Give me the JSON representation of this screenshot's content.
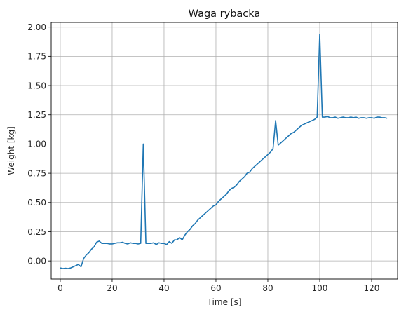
{
  "chart_data": {
    "type": "line",
    "title": "Waga rybacka",
    "xlabel": "Time [s]",
    "ylabel": "Weight [kg]",
    "xlim": [
      -3.5,
      130
    ],
    "ylim": [
      -0.155,
      2.04
    ],
    "xticks": [
      0,
      20,
      40,
      60,
      80,
      100,
      120
    ],
    "yticks": [
      0.0,
      0.25,
      0.5,
      0.75,
      1.0,
      1.25,
      1.5,
      1.75,
      2.0
    ],
    "ytick_labels": [
      "0.00",
      "0.25",
      "0.50",
      "0.75",
      "1.00",
      "1.25",
      "1.50",
      "1.75",
      "2.00"
    ],
    "grid": true,
    "series": [
      {
        "color": "#1f77b4",
        "x": [
          0,
          1,
          2,
          3,
          4,
          5,
          6,
          7,
          8,
          9,
          10,
          11,
          12,
          13,
          14,
          15,
          16,
          17,
          18,
          19,
          20,
          21,
          22,
          23,
          24,
          25,
          26,
          27,
          28,
          29,
          30,
          31,
          32,
          33,
          34,
          35,
          36,
          37,
          38,
          39,
          40,
          41,
          42,
          43,
          44,
          45,
          46,
          47,
          48,
          49,
          50,
          51,
          52,
          53,
          54,
          55,
          56,
          57,
          58,
          59,
          60,
          61,
          62,
          63,
          64,
          65,
          66,
          67,
          68,
          69,
          70,
          71,
          72,
          73,
          74,
          75,
          76,
          77,
          78,
          79,
          80,
          81,
          82,
          83,
          84,
          85,
          86,
          87,
          88,
          89,
          90,
          91,
          92,
          93,
          94,
          95,
          96,
          97,
          98,
          99,
          100,
          101,
          102,
          103,
          104,
          105,
          106,
          107,
          108,
          109,
          110,
          111,
          112,
          113,
          114,
          115,
          116,
          117,
          118,
          119,
          120,
          121,
          122,
          123,
          124,
          125,
          126
        ],
        "y": [
          -0.06,
          -0.065,
          -0.062,
          -0.065,
          -0.06,
          -0.05,
          -0.04,
          -0.03,
          -0.05,
          0.02,
          0.05,
          0.07,
          0.1,
          0.12,
          0.16,
          0.17,
          0.15,
          0.15,
          0.15,
          0.145,
          0.145,
          0.15,
          0.155,
          0.155,
          0.16,
          0.15,
          0.145,
          0.155,
          0.15,
          0.15,
          0.145,
          0.15,
          1.0,
          0.15,
          0.15,
          0.15,
          0.155,
          0.14,
          0.155,
          0.15,
          0.15,
          0.14,
          0.165,
          0.15,
          0.18,
          0.18,
          0.2,
          0.18,
          0.22,
          0.25,
          0.27,
          0.3,
          0.32,
          0.35,
          0.37,
          0.39,
          0.41,
          0.43,
          0.45,
          0.47,
          0.48,
          0.51,
          0.53,
          0.55,
          0.57,
          0.6,
          0.62,
          0.63,
          0.65,
          0.68,
          0.7,
          0.72,
          0.75,
          0.76,
          0.79,
          0.81,
          0.83,
          0.85,
          0.87,
          0.89,
          0.91,
          0.93,
          0.96,
          1.2,
          0.99,
          1.01,
          1.03,
          1.05,
          1.07,
          1.09,
          1.1,
          1.12,
          1.14,
          1.16,
          1.17,
          1.18,
          1.19,
          1.2,
          1.21,
          1.23,
          1.94,
          1.23,
          1.23,
          1.235,
          1.225,
          1.225,
          1.23,
          1.22,
          1.225,
          1.23,
          1.225,
          1.225,
          1.23,
          1.225,
          1.23,
          1.22,
          1.225,
          1.225,
          1.22,
          1.225,
          1.225,
          1.22,
          1.23,
          1.23,
          1.225,
          1.225,
          1.22
        ]
      }
    ]
  }
}
